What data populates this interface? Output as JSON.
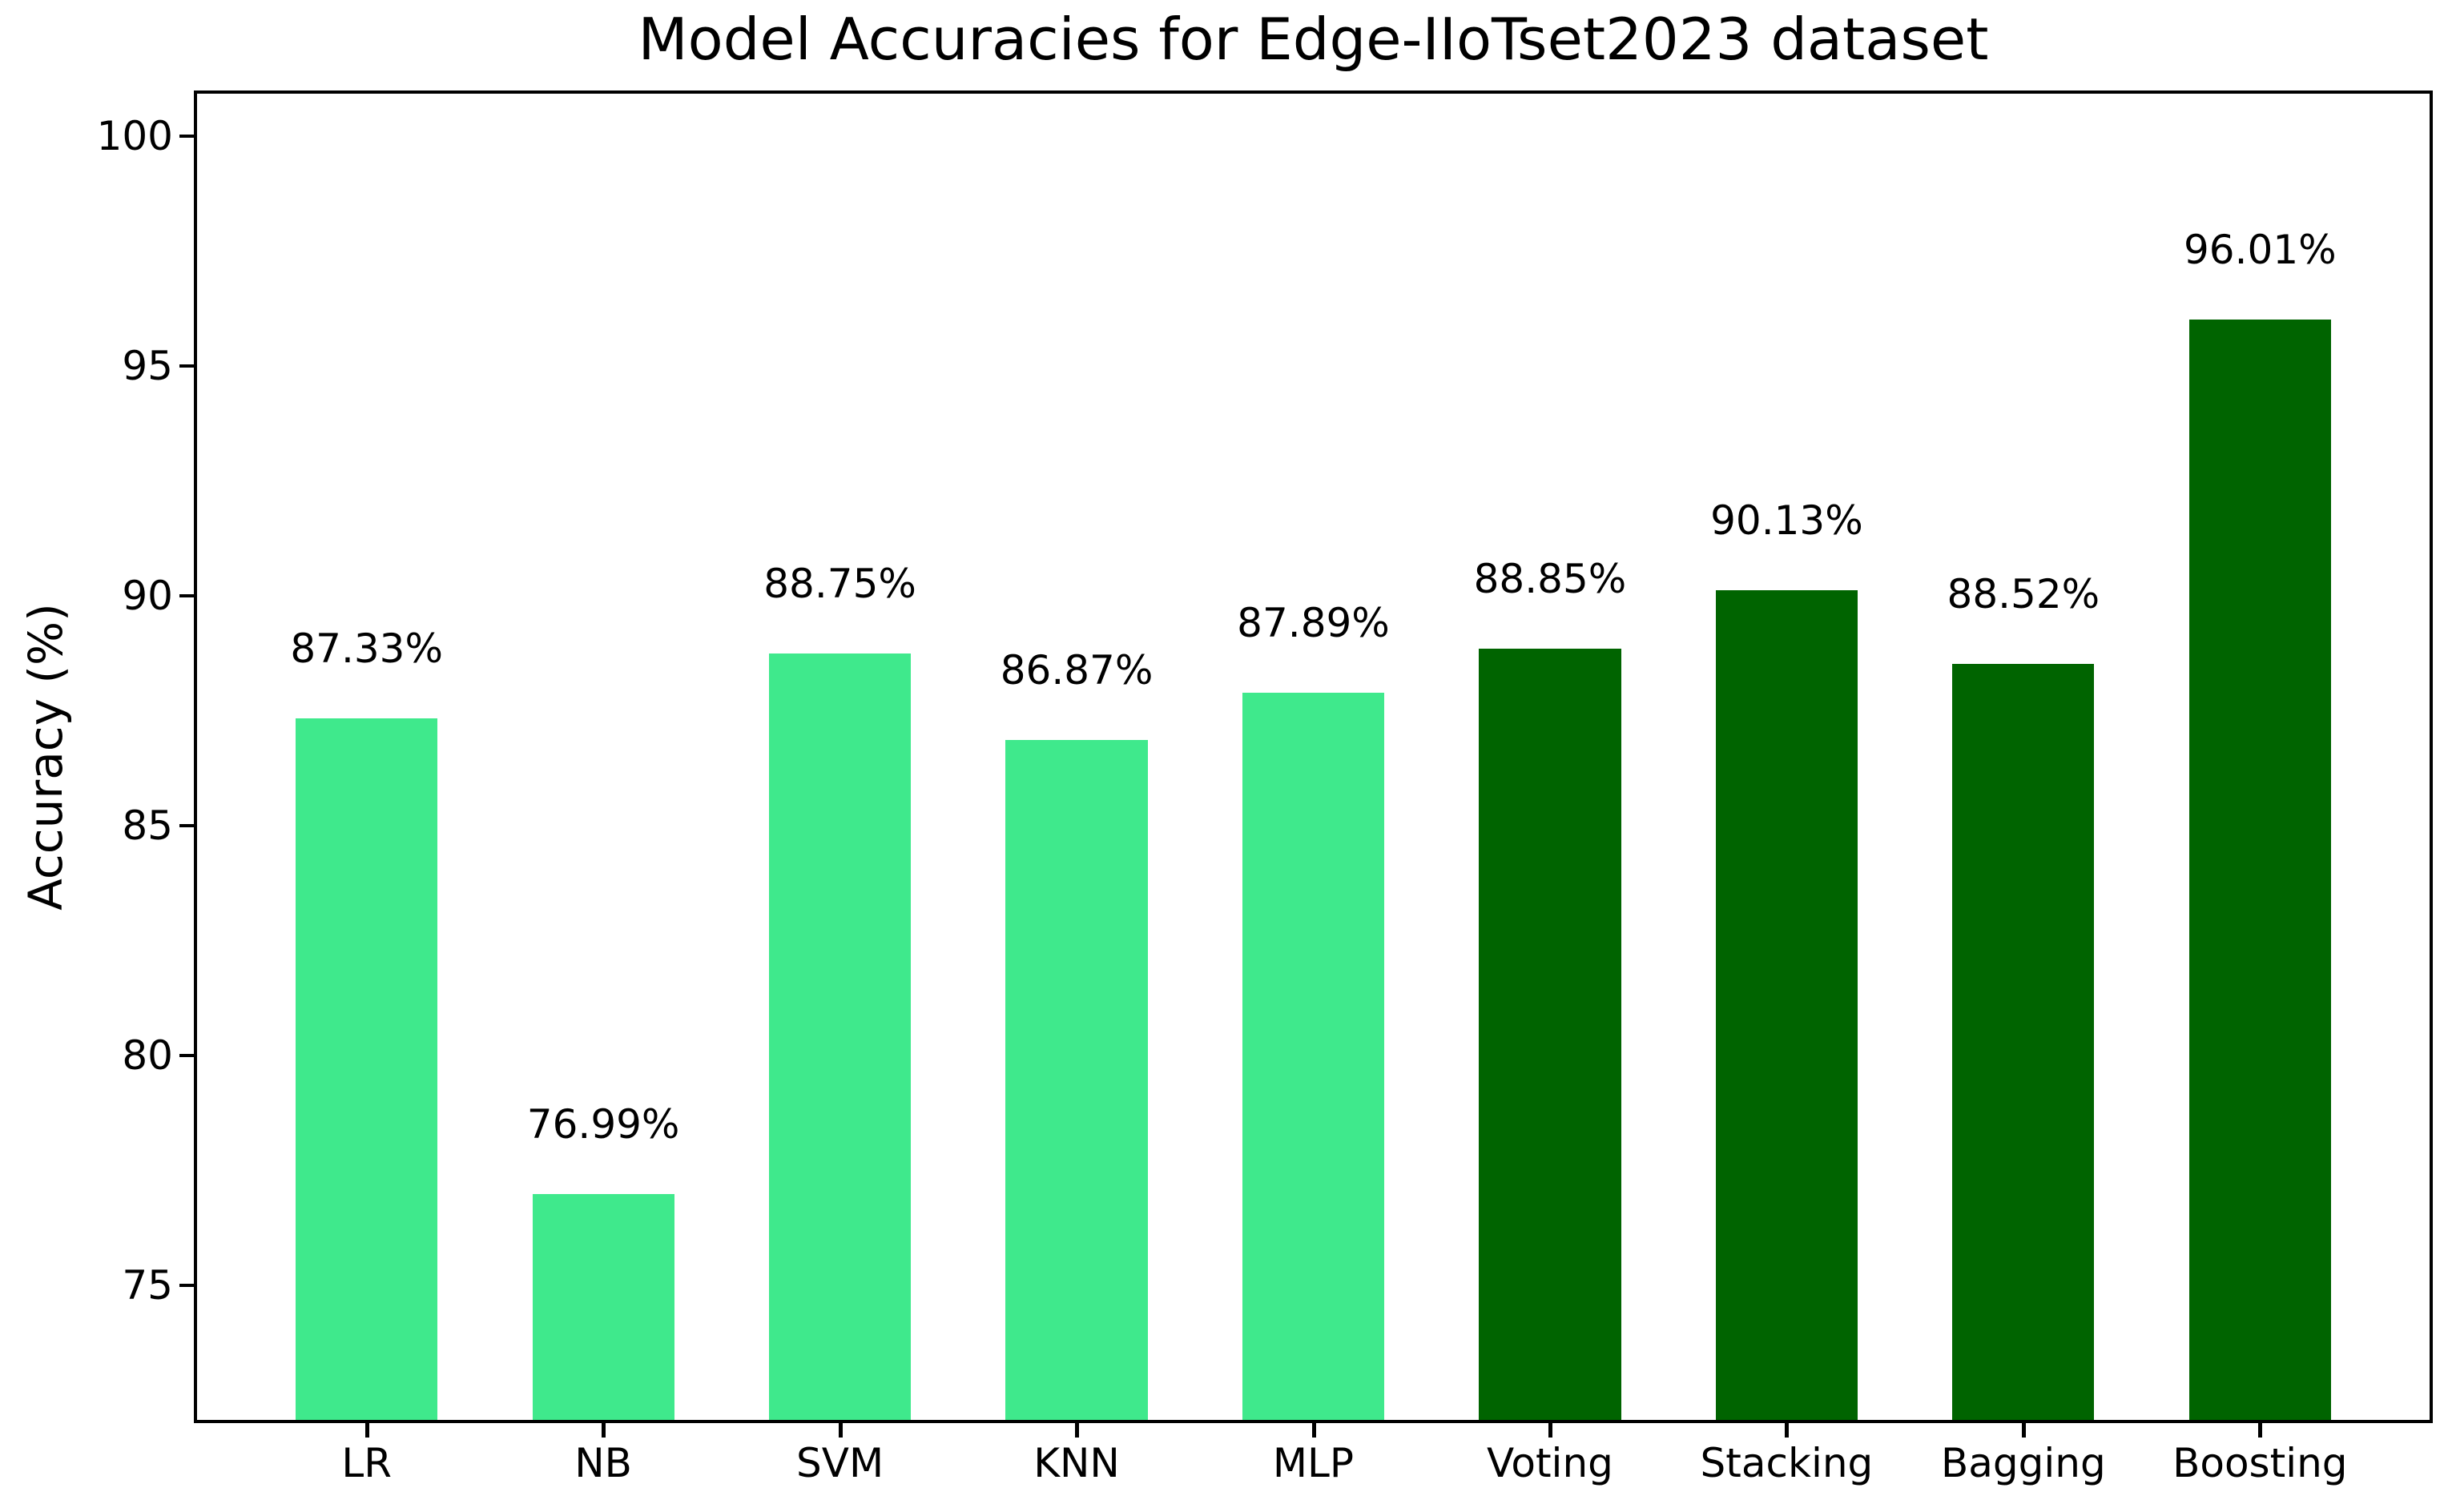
{
  "figure": {
    "background": "#ffffff",
    "text_color": "#000000"
  },
  "chart_data": {
    "type": "bar",
    "title": "Model Accuracies for Edge-IIoTset2023 dataset",
    "xlabel": "",
    "ylabel": "Accuracy (%)",
    "categories": [
      "LR",
      "NB",
      "SVM",
      "KNN",
      "MLP",
      "Voting",
      "Stacking",
      "Bagging",
      "Boosting"
    ],
    "values": [
      87.33,
      76.99,
      88.75,
      86.87,
      87.89,
      88.85,
      90.13,
      88.52,
      96.01
    ],
    "bar_labels": [
      "87.33%",
      "76.99%",
      "88.75%",
      "86.87%",
      "87.89%",
      "88.85%",
      "90.13%",
      "88.52%",
      "96.01%"
    ],
    "bar_colors": [
      "#3FE98C",
      "#3FE98C",
      "#3FE98C",
      "#3FE98C",
      "#3FE98C",
      "#006400",
      "#006400",
      "#006400",
      "#006400"
    ],
    "yticks": [
      75,
      80,
      85,
      90,
      95,
      100
    ],
    "ylim": [
      72,
      101
    ],
    "xlim": [
      -0.73,
      8.73
    ],
    "bar_width": 0.6,
    "grid": false,
    "legend": false
  }
}
